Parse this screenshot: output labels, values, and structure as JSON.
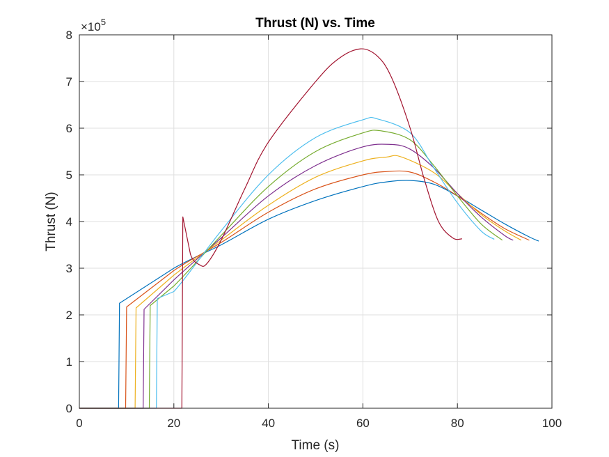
{
  "chart_data": {
    "type": "line",
    "title": "Thrust (N) vs. Time",
    "xlabel": "Time (s)",
    "ylabel": "Thrust (N)",
    "y_exponent_label": "×10",
    "y_exponent": "5",
    "xlim": [
      0,
      100
    ],
    "ylim": [
      0,
      8
    ],
    "y_scale_factor": 100000,
    "xticks": [
      0,
      20,
      40,
      60,
      80,
      100
    ],
    "yticks": [
      0,
      1,
      2,
      3,
      4,
      5,
      6,
      7,
      8
    ],
    "grid": true,
    "series": [
      {
        "color": "#0072BD",
        "x": [
          0,
          8.3,
          8.5,
          20,
          30,
          40,
          50,
          60,
          65,
          70,
          75,
          80,
          85,
          90,
          95,
          97.2
        ],
        "y": [
          0,
          0,
          2.25,
          3.0,
          3.5,
          4.05,
          4.45,
          4.75,
          4.85,
          4.88,
          4.8,
          4.55,
          4.25,
          3.95,
          3.68,
          3.58
        ]
      },
      {
        "color": "#D95319",
        "x": [
          0,
          9.8,
          10.0,
          20,
          30,
          40,
          50,
          60,
          65,
          70,
          75,
          80,
          85,
          90,
          95.2
        ],
        "y": [
          0,
          0,
          2.17,
          2.95,
          3.55,
          4.2,
          4.7,
          5.0,
          5.07,
          5.06,
          4.85,
          4.55,
          4.18,
          3.85,
          3.6
        ]
      },
      {
        "color": "#EDB120",
        "x": [
          0,
          11.8,
          12.0,
          20,
          30,
          40,
          50,
          60,
          65,
          68,
          75,
          80,
          85,
          90,
          93.5
        ],
        "y": [
          0,
          0,
          2.15,
          2.85,
          3.6,
          4.35,
          4.95,
          5.3,
          5.38,
          5.39,
          5.05,
          4.6,
          4.15,
          3.8,
          3.6
        ]
      },
      {
        "color": "#7E2F8E",
        "x": [
          0,
          13.5,
          13.7,
          20,
          30,
          40,
          50,
          60,
          66,
          70,
          75,
          80,
          85,
          90,
          91.8
        ],
        "y": [
          0,
          0,
          2.12,
          2.75,
          3.65,
          4.55,
          5.2,
          5.6,
          5.65,
          5.55,
          5.15,
          4.6,
          4.1,
          3.7,
          3.6
        ]
      },
      {
        "color": "#77AC30",
        "x": [
          0,
          14.8,
          15.0,
          20,
          30,
          40,
          50,
          60,
          64,
          70,
          75,
          80,
          85,
          89.5
        ],
        "y": [
          0,
          0,
          2.2,
          2.62,
          3.7,
          4.75,
          5.5,
          5.9,
          5.94,
          5.75,
          5.2,
          4.55,
          3.95,
          3.6
        ]
      },
      {
        "color": "#4DBEEE",
        "x": [
          0,
          16.3,
          16.5,
          20,
          30,
          40,
          50,
          60,
          63,
          70,
          75,
          80,
          85,
          87.8
        ],
        "y": [
          0,
          0,
          2.35,
          2.5,
          3.8,
          5.0,
          5.8,
          6.18,
          6.2,
          5.9,
          5.15,
          4.4,
          3.8,
          3.62
        ]
      },
      {
        "color": "#A2142F",
        "x": [
          0,
          21.7,
          21.9,
          23.5,
          25.5,
          27,
          30,
          35,
          40,
          50,
          55,
          59.5,
          63,
          66,
          70,
          73,
          76,
          79,
          81
        ],
        "y": [
          0,
          0,
          4.1,
          3.3,
          3.07,
          3.1,
          3.6,
          4.7,
          5.7,
          7.0,
          7.5,
          7.7,
          7.55,
          7.1,
          6.0,
          4.9,
          4.0,
          3.65,
          3.63
        ]
      }
    ]
  }
}
